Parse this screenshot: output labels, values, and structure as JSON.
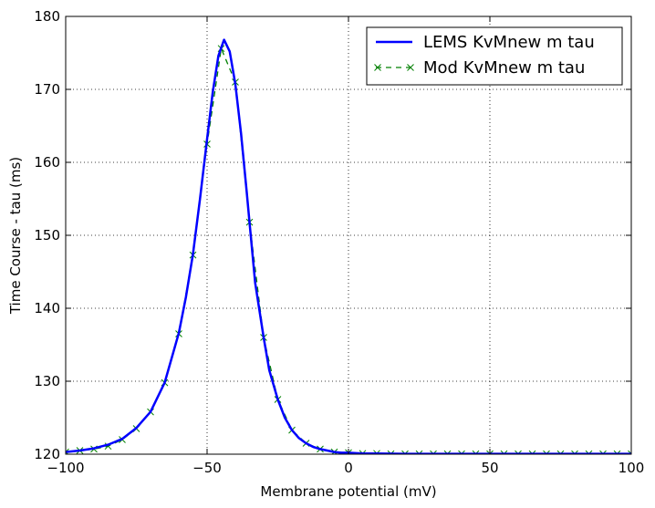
{
  "chart_data": {
    "type": "line",
    "xlabel": "Membrane potential (mV)",
    "ylabel": "Time Course - tau (ms)",
    "xlim": [
      -100,
      100
    ],
    "ylim": [
      120,
      180
    ],
    "xticks": [
      -100,
      -50,
      0,
      50,
      100
    ],
    "xtick_labels": [
      "−100",
      "−50",
      "0",
      "50",
      "100"
    ],
    "yticks": [
      120,
      130,
      140,
      150,
      160,
      170,
      180
    ],
    "ytick_labels": [
      "120",
      "130",
      "140",
      "150",
      "160",
      "170",
      "180"
    ],
    "grid": true,
    "legend_position": "top-right",
    "series": [
      {
        "name": "LEMS KvMnew m tau",
        "style": "solid",
        "color": "#0000ff",
        "x": [
          -100,
          -95,
          -90,
          -85,
          -80,
          -75,
          -70,
          -65,
          -60,
          -57.5,
          -55,
          -52.5,
          -50,
          -48,
          -46,
          -44,
          -42,
          -40,
          -38,
          -36,
          -35,
          -33,
          -30,
          -28,
          -25,
          -22.5,
          -20,
          -17.5,
          -15,
          -12.5,
          -10,
          -7.5,
          -5,
          -2.5,
          0,
          5,
          10,
          20,
          30,
          40,
          50,
          60,
          70,
          80,
          90,
          100
        ],
        "y": [
          120.3,
          120.5,
          120.8,
          121.3,
          122.1,
          123.6,
          125.8,
          129.8,
          136.6,
          141.5,
          147.4,
          155,
          163.2,
          169.6,
          174.6,
          176.8,
          175.2,
          170.7,
          164,
          156,
          151.8,
          143.5,
          136,
          131.5,
          127.5,
          125,
          123.3,
          122.2,
          121.5,
          121,
          120.7,
          120.5,
          120.3,
          120.2,
          120.2,
          120.1,
          120.1,
          120.05,
          120.05,
          120.05,
          120.05,
          120.05,
          120.05,
          120.05,
          120.05,
          120.05
        ]
      },
      {
        "name": "Mod KvMnew m tau",
        "style": "dashed",
        "marker": "x",
        "color": "#008000",
        "x": [
          -100,
          -95,
          -90,
          -85,
          -80,
          -75,
          -70,
          -65,
          -60,
          -55,
          -50,
          -45,
          -40,
          -35,
          -30,
          -25,
          -20,
          -15,
          -10,
          -5,
          0,
          5,
          10,
          15,
          20,
          25,
          30,
          35,
          40,
          45,
          50,
          55,
          60,
          65,
          70,
          75,
          80,
          85,
          90,
          95,
          100
        ],
        "y": [
          120.3,
          120.5,
          120.7,
          121.1,
          122,
          123.5,
          125.8,
          129.8,
          136.5,
          147.3,
          162.5,
          175.6,
          171,
          151.8,
          136,
          127.5,
          123.3,
          121.5,
          120.7,
          120.3,
          120.2,
          120.1,
          120.1,
          120.05,
          120.05,
          120.05,
          120.05,
          120.05,
          120.05,
          120.05,
          120.05,
          120.05,
          120.05,
          120.05,
          120.05,
          120.05,
          120.05,
          120.05,
          120.05,
          120.05,
          120.05
        ]
      }
    ]
  }
}
